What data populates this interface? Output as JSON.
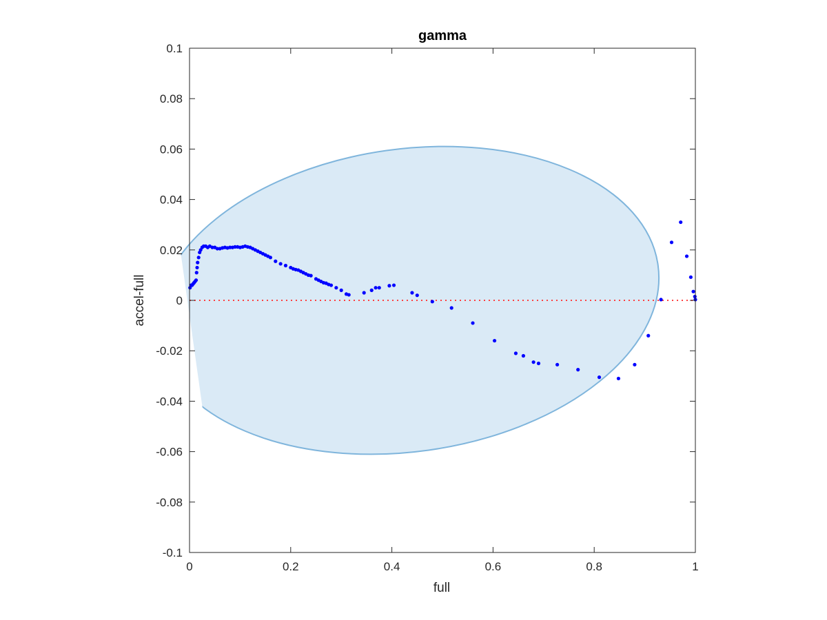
{
  "chart_data": {
    "type": "scatter",
    "title": "gamma",
    "xlabel": "full",
    "ylabel": "accel-full",
    "xlim": [
      0,
      1
    ],
    "ylim": [
      -0.1,
      0.1
    ],
    "x_ticks": [
      0,
      0.2,
      0.4,
      0.6,
      0.8,
      1
    ],
    "x_tick_labels": [
      "0",
      "0.2",
      "0.4",
      "0.6",
      "0.8",
      "1"
    ],
    "y_ticks": [
      -0.1,
      -0.08,
      -0.06,
      -0.04,
      -0.02,
      0,
      0.02,
      0.04,
      0.06,
      0.08,
      0.1
    ],
    "y_tick_labels": [
      "-0.1",
      "-0.08",
      "-0.06",
      "-0.04",
      "-0.02",
      "0",
      "0.02",
      "0.04",
      "0.06",
      "0.08",
      "0.1"
    ],
    "grid": false,
    "box": true,
    "series": [
      {
        "type": "scatter",
        "color": "#0000ff",
        "points": [
          [
            0.001,
            0.005
          ],
          [
            0.003,
            0.006
          ],
          [
            0.005,
            0.006
          ],
          [
            0.007,
            0.0065
          ],
          [
            0.009,
            0.007
          ],
          [
            0.011,
            0.0075
          ],
          [
            0.013,
            0.008
          ],
          [
            0.014,
            0.011
          ],
          [
            0.015,
            0.013
          ],
          [
            0.016,
            0.015
          ],
          [
            0.018,
            0.017
          ],
          [
            0.02,
            0.019
          ],
          [
            0.022,
            0.02
          ],
          [
            0.025,
            0.021
          ],
          [
            0.028,
            0.0215
          ],
          [
            0.032,
            0.0215
          ],
          [
            0.036,
            0.021
          ],
          [
            0.04,
            0.0215
          ],
          [
            0.045,
            0.021
          ],
          [
            0.05,
            0.021
          ],
          [
            0.055,
            0.0205
          ],
          [
            0.06,
            0.0205
          ],
          [
            0.065,
            0.0208
          ],
          [
            0.07,
            0.021
          ],
          [
            0.075,
            0.0208
          ],
          [
            0.08,
            0.021
          ],
          [
            0.085,
            0.021
          ],
          [
            0.09,
            0.0212
          ],
          [
            0.095,
            0.0212
          ],
          [
            0.1,
            0.021
          ],
          [
            0.105,
            0.0212
          ],
          [
            0.11,
            0.0215
          ],
          [
            0.115,
            0.0212
          ],
          [
            0.12,
            0.021
          ],
          [
            0.125,
            0.0205
          ],
          [
            0.13,
            0.02
          ],
          [
            0.135,
            0.0195
          ],
          [
            0.14,
            0.019
          ],
          [
            0.145,
            0.0185
          ],
          [
            0.15,
            0.018
          ],
          [
            0.155,
            0.0175
          ],
          [
            0.16,
            0.017
          ],
          [
            0.17,
            0.0155
          ],
          [
            0.18,
            0.0145
          ],
          [
            0.19,
            0.0138
          ],
          [
            0.2,
            0.013
          ],
          [
            0.205,
            0.0125
          ],
          [
            0.21,
            0.0122
          ],
          [
            0.215,
            0.012
          ],
          [
            0.22,
            0.0115
          ],
          [
            0.225,
            0.011
          ],
          [
            0.23,
            0.0105
          ],
          [
            0.235,
            0.01
          ],
          [
            0.24,
            0.0098
          ],
          [
            0.25,
            0.0085
          ],
          [
            0.255,
            0.008
          ],
          [
            0.26,
            0.0075
          ],
          [
            0.265,
            0.007
          ],
          [
            0.27,
            0.0068
          ],
          [
            0.275,
            0.0063
          ],
          [
            0.28,
            0.006
          ],
          [
            0.29,
            0.005
          ],
          [
            0.3,
            0.004
          ],
          [
            0.31,
            0.0025
          ],
          [
            0.315,
            0.0022
          ],
          [
            0.345,
            0.003
          ],
          [
            0.36,
            0.004
          ],
          [
            0.368,
            0.005
          ],
          [
            0.375,
            0.005
          ],
          [
            0.395,
            0.0058
          ],
          [
            0.404,
            0.006
          ],
          [
            0.44,
            0.003
          ],
          [
            0.45,
            0.002
          ],
          [
            0.48,
            -0.0005
          ],
          [
            0.518,
            -0.003
          ],
          [
            0.56,
            -0.009
          ],
          [
            0.603,
            -0.016
          ],
          [
            0.645,
            -0.021
          ],
          [
            0.66,
            -0.022
          ],
          [
            0.68,
            -0.0245
          ],
          [
            0.69,
            -0.025
          ],
          [
            0.727,
            -0.0255
          ],
          [
            0.768,
            -0.0275
          ],
          [
            0.81,
            -0.0305
          ],
          [
            0.848,
            -0.031
          ],
          [
            0.88,
            -0.0255
          ],
          [
            0.907,
            -0.014
          ],
          [
            0.932,
            0.0003
          ],
          [
            0.953,
            0.023
          ],
          [
            0.971,
            0.031
          ],
          [
            0.983,
            0.0175
          ],
          [
            0.991,
            0.0092
          ],
          [
            0.996,
            0.0035
          ],
          [
            0.999,
            0.0015
          ],
          [
            1.0,
            0.0003
          ]
        ]
      }
    ],
    "confidence_ellipse": {
      "center": [
        0.431,
        0.0
      ],
      "semi_axis_x": 0.5,
      "semi_axis_y": 0.06,
      "rotation_deg": -8,
      "fill_color": "#daeaf6",
      "edge_color": "#7fb5dc"
    },
    "reference_line": {
      "y": 0,
      "style": "dotted",
      "color": "#ff4040"
    }
  }
}
